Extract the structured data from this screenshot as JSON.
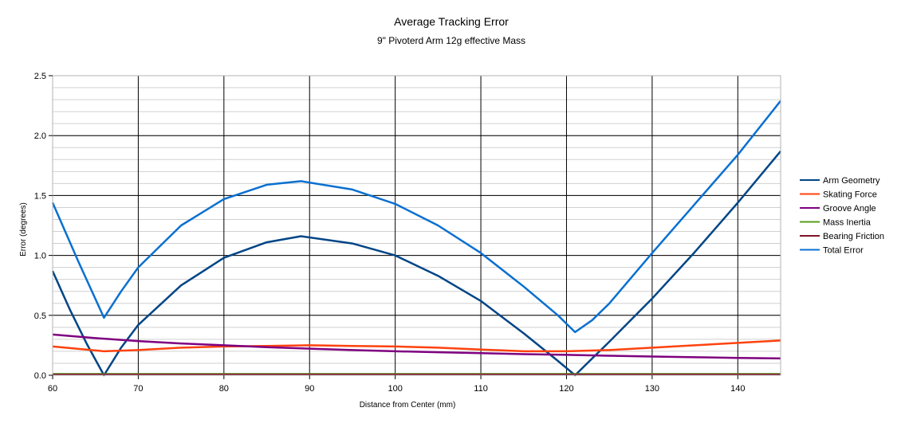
{
  "chart_data": {
    "type": "line",
    "title": "Average Tracking Error",
    "subtitle": "9\" Pivoterd Arm 12g effective Mass",
    "xlabel": "Distance from Center (mm)",
    "ylabel": "Error (degrees)",
    "xlim": [
      60,
      145
    ],
    "ylim": [
      0,
      2.5
    ],
    "xticks": [
      60,
      70,
      80,
      90,
      100,
      110,
      120,
      130,
      140
    ],
    "xtick_labels": [
      "60",
      "70",
      "80",
      "90",
      "100",
      "110",
      "120",
      "130",
      "140"
    ],
    "yticks": [
      0,
      0.5,
      1.0,
      1.5,
      2.0,
      2.5
    ],
    "ytick_labels": [
      "0.0",
      "0.5",
      "1.0",
      "1.5",
      "2.0",
      "2.5"
    ],
    "grid": true,
    "legend_position": "right",
    "series": [
      {
        "name": "Arm Geometry",
        "color": "#004586",
        "x": [
          60,
          62,
          64,
          66,
          68,
          70,
          75,
          80,
          85,
          89,
          95,
          100,
          105,
          110,
          115,
          119,
          121,
          123,
          125,
          130,
          135,
          140,
          145
        ],
        "y": [
          0.87,
          0.55,
          0.26,
          0.0,
          0.23,
          0.42,
          0.75,
          0.98,
          1.11,
          1.16,
          1.1,
          1.0,
          0.83,
          0.62,
          0.35,
          0.12,
          0.0,
          0.14,
          0.28,
          0.64,
          1.03,
          1.44,
          1.87
        ]
      },
      {
        "name": "Skating Force",
        "color": "#ff420e",
        "x": [
          60,
          63,
          66,
          70,
          75,
          80,
          85,
          90,
          95,
          100,
          105,
          110,
          115,
          120,
          125,
          130,
          135,
          140,
          145
        ],
        "y": [
          0.24,
          0.22,
          0.2,
          0.21,
          0.23,
          0.24,
          0.245,
          0.25,
          0.245,
          0.24,
          0.23,
          0.215,
          0.2,
          0.2,
          0.21,
          0.23,
          0.25,
          0.27,
          0.29
        ]
      },
      {
        "name": "Groove Angle",
        "color": "#7e0080",
        "x": [
          60,
          65,
          70,
          75,
          80,
          85,
          90,
          95,
          100,
          105,
          110,
          115,
          120,
          125,
          130,
          135,
          140,
          145
        ],
        "y": [
          0.34,
          0.31,
          0.285,
          0.265,
          0.25,
          0.235,
          0.222,
          0.21,
          0.2,
          0.192,
          0.184,
          0.176,
          0.17,
          0.163,
          0.156,
          0.15,
          0.145,
          0.14
        ]
      },
      {
        "name": "Mass Inertia",
        "color": "#579d1c",
        "x": [
          60,
          145
        ],
        "y": [
          0.01,
          0.01
        ]
      },
      {
        "name": "Bearing Friction",
        "color": "#7e1426",
        "x": [
          60,
          145
        ],
        "y": [
          0.005,
          0.005
        ]
      },
      {
        "name": "Total Error",
        "color": "#0a70d0",
        "x": [
          60,
          63,
          66,
          68,
          70,
          75,
          80,
          85,
          89,
          95,
          100,
          105,
          110,
          115,
          119,
          121,
          123,
          125,
          130,
          135,
          140,
          145
        ],
        "y": [
          1.44,
          0.95,
          0.48,
          0.7,
          0.9,
          1.25,
          1.47,
          1.59,
          1.62,
          1.55,
          1.43,
          1.25,
          1.02,
          0.74,
          0.5,
          0.36,
          0.46,
          0.6,
          1.02,
          1.43,
          1.84,
          2.29
        ]
      }
    ]
  }
}
